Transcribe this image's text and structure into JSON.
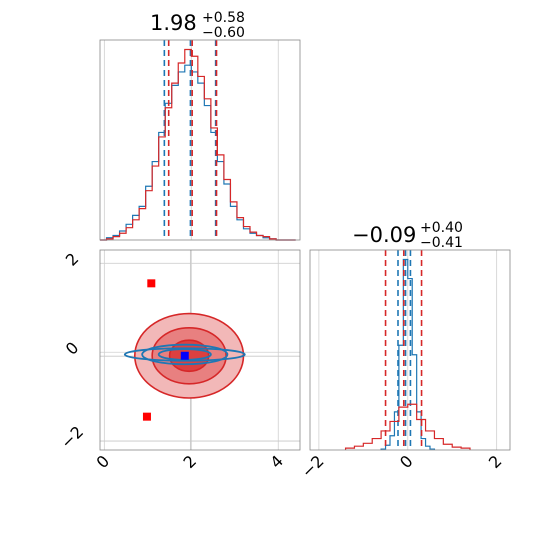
{
  "chart_data": [
    {
      "panel": "marginal-x",
      "type": "histogram",
      "title": {
        "median": "1.98",
        "plus": "+0.58",
        "minus": "−0.60"
      },
      "xlim": [
        -0.1,
        4.5
      ],
      "grid": true,
      "series": [
        {
          "color": "#1f77b4",
          "bin_edges": [
            -0.1,
            0.05,
            0.2,
            0.35,
            0.5,
            0.65,
            0.8,
            0.95,
            1.1,
            1.25,
            1.4,
            1.55,
            1.7,
            1.85,
            2.0,
            2.15,
            2.3,
            2.45,
            2.6,
            2.75,
            2.9,
            3.05,
            3.2,
            3.35,
            3.5,
            3.65,
            3.8,
            3.95,
            4.1,
            4.25,
            4.4
          ],
          "counts": [
            0,
            2,
            4,
            8,
            14,
            22,
            30,
            48,
            70,
            96,
            122,
            138,
            150,
            156,
            150,
            140,
            120,
            96,
            70,
            50,
            30,
            18,
            10,
            6,
            4,
            2,
            1,
            0,
            0,
            0
          ],
          "quantile_lines": [
            1.38,
            1.98,
            2.56
          ]
        },
        {
          "color": "#d62728",
          "bin_edges": [
            -0.1,
            0.05,
            0.2,
            0.35,
            0.5,
            0.65,
            0.8,
            0.95,
            1.1,
            1.25,
            1.4,
            1.55,
            1.7,
            1.85,
            2.0,
            2.15,
            2.3,
            2.45,
            2.6,
            2.75,
            2.9,
            3.05,
            3.2,
            3.35,
            3.5,
            3.65,
            3.8,
            3.95,
            4.1,
            4.25,
            4.4
          ],
          "counts": [
            0,
            1,
            3,
            6,
            11,
            18,
            28,
            44,
            66,
            92,
            118,
            140,
            158,
            170,
            164,
            146,
            126,
            100,
            76,
            54,
            34,
            20,
            12,
            7,
            4,
            3,
            1,
            0,
            0,
            0
          ],
          "quantile_lines": [
            1.48,
            2.02,
            2.58
          ]
        }
      ]
    },
    {
      "panel": "joint",
      "type": "contour",
      "xlim": [
        -0.1,
        4.5
      ],
      "ylim": [
        -2.2,
        2.3
      ],
      "xticks": [
        "0",
        "2",
        "4"
      ],
      "yticks": [
        "−2",
        "0",
        "2"
      ],
      "grid": true,
      "series": [
        {
          "color": "#d62728",
          "center": [
            1.95,
            -0.08
          ],
          "levels": [
            {
              "semi_axes": [
                1.25,
                0.95
              ],
              "fill": "#f2b8b8"
            },
            {
              "semi_axes": [
                0.85,
                0.63
              ],
              "fill": "#e88080"
            },
            {
              "semi_axes": [
                0.45,
                0.35
              ],
              "fill": "#dc4040"
            }
          ]
        },
        {
          "color": "#1f77b4",
          "center": [
            1.85,
            -0.05
          ],
          "levels": [
            {
              "semi_axes": [
                1.38,
                0.14
              ]
            },
            {
              "semi_axes": [
                0.98,
                0.22
              ]
            },
            {
              "semi_axes": [
                0.6,
                0.12
              ]
            }
          ]
        }
      ],
      "markers": [
        {
          "x": 1.08,
          "y": 1.55,
          "color": "#ff0000"
        },
        {
          "x": 0.98,
          "y": -1.45,
          "color": "#ff0000"
        },
        {
          "x": 1.85,
          "y": -0.08,
          "color": "#0000ff"
        }
      ],
      "reference_lines": {
        "x": 1.98,
        "y": -0.09,
        "y2": -2.0
      }
    },
    {
      "panel": "marginal-y",
      "type": "histogram",
      "title": {
        "median": "−0.09",
        "plus": "+0.40",
        "minus": "−0.41"
      },
      "xlim": [
        -2.2,
        2.3
      ],
      "xticks": [
        "−2",
        "0",
        "2"
      ],
      "grid": true,
      "series": [
        {
          "color": "#1f77b4",
          "bin_edges": [
            -0.6,
            -0.5,
            -0.4,
            -0.3,
            -0.2,
            -0.1,
            0.0,
            0.1,
            0.2,
            0.3,
            0.4,
            0.5,
            0.6
          ],
          "counts": [
            1,
            5,
            15,
            40,
            110,
            200,
            180,
            100,
            40,
            12,
            4,
            1
          ],
          "quantile_lines": [
            -0.22,
            -0.05,
            0.06
          ]
        },
        {
          "color": "#d62728",
          "bin_edges": [
            -1.4,
            -1.2,
            -1.0,
            -0.8,
            -0.6,
            -0.4,
            -0.2,
            0.0,
            0.2,
            0.4,
            0.6,
            0.8,
            1.0,
            1.2,
            1.4
          ],
          "counts": [
            2,
            4,
            7,
            12,
            20,
            30,
            45,
            48,
            32,
            20,
            12,
            6,
            3,
            2
          ],
          "quantile_lines": [
            -0.5,
            -0.09,
            0.31
          ]
        }
      ]
    }
  ]
}
